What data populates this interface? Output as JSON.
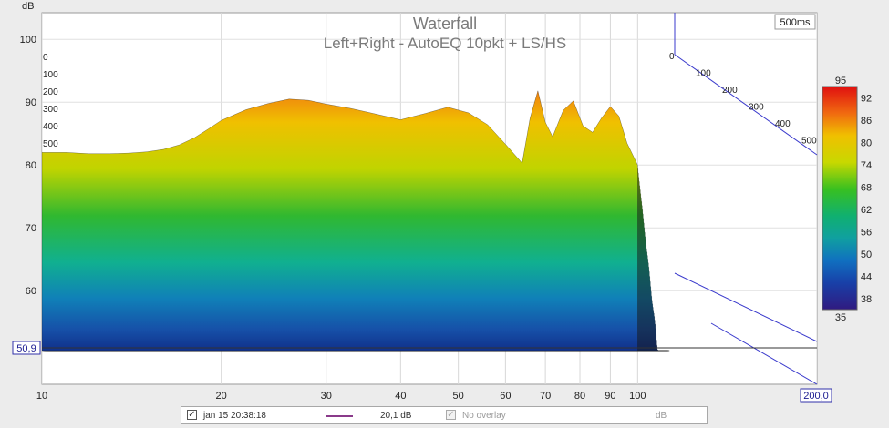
{
  "chart_data": {
    "type": "waterfall",
    "title": "Waterfall",
    "subtitle": "Left+Right - AutoEQ 10pkt + LS/HS",
    "y_unit": "dB",
    "y_ticks": [
      "100",
      "90",
      "80",
      "70",
      "60"
    ],
    "y_cursor": "50,9",
    "x_ticks": [
      "10",
      "20",
      "30",
      "40",
      "50",
      "60",
      "70",
      "80",
      "90",
      "100"
    ],
    "x_cursor": "200,0",
    "xlim": [
      10,
      200
    ],
    "ylim": [
      50.9,
      103
    ],
    "time_label": "500ms",
    "time_ticks_left": [
      "0",
      "100",
      "200",
      "300",
      "400",
      "500"
    ],
    "time_ticks_right": [
      "0",
      "100",
      "200",
      "300",
      "400",
      "500"
    ],
    "colorbar": {
      "top_label": "95",
      "bottom_label": "35",
      "ticks": [
        "92",
        "86",
        "80",
        "74",
        "68",
        "62",
        "56",
        "50",
        "44",
        "38"
      ],
      "range": [
        35,
        95
      ]
    },
    "front_slice": {
      "freq": [
        10,
        11,
        12,
        13,
        14,
        15,
        16,
        17,
        18,
        19,
        20,
        22,
        24,
        26,
        28,
        30,
        33,
        36,
        40,
        44,
        48,
        52,
        56,
        60,
        64,
        66,
        68,
        70,
        72,
        75,
        78,
        81,
        84,
        87,
        90,
        93,
        96,
        100
      ],
      "db": [
        82.0,
        82.0,
        81.8,
        81.8,
        81.9,
        82.1,
        82.5,
        83.2,
        84.3,
        85.7,
        87.1,
        88.8,
        89.8,
        90.5,
        90.3,
        89.7,
        89.0,
        88.2,
        87.2,
        88.2,
        89.2,
        88.3,
        86.4,
        83.3,
        80.3,
        87.5,
        91.8,
        86.8,
        84.5,
        88.7,
        90.2,
        86.2,
        85.2,
        87.5,
        89.3,
        87.8,
        83.5,
        80.0
      ]
    }
  },
  "legend": {
    "timestamp": "jan 15 20:38:18",
    "value": "20,1 dB",
    "overlay": "No overlay",
    "unit": "dB",
    "checked_mark": "✓"
  }
}
